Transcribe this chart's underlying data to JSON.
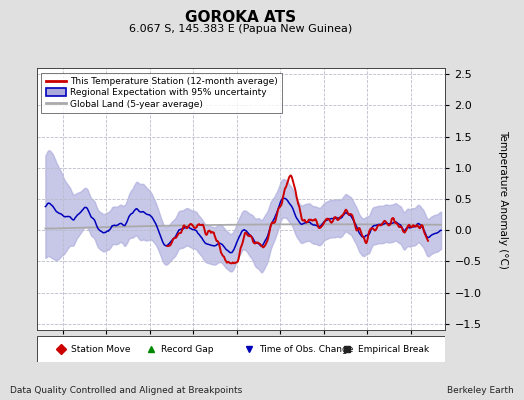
{
  "title": "GOROKA ATS",
  "subtitle": "6.067 S, 145.383 E (Papua New Guinea)",
  "ylabel": "Temperature Anomaly (°C)",
  "xlabel_note": "Data Quality Controlled and Aligned at Breakpoints",
  "credit": "Berkeley Earth",
  "xlim": [
    1937,
    1984
  ],
  "ylim": [
    -1.6,
    2.6
  ],
  "yticks": [
    -1.5,
    -1.0,
    -0.5,
    0.0,
    0.5,
    1.0,
    1.5,
    2.0,
    2.5
  ],
  "xticks": [
    1940,
    1945,
    1950,
    1955,
    1960,
    1965,
    1970,
    1975,
    1980
  ],
  "bg_color": "#e0e0e0",
  "plot_bg_color": "#ffffff",
  "grid_color": "#bbbbcc",
  "red_line_color": "#cc0000",
  "blue_line_color": "#0000bb",
  "blue_fill_color": "#aaaadd",
  "gray_line_color": "#aaaaaa",
  "legend_labels": [
    "This Temperature Station (12-month average)",
    "Regional Expectation with 95% uncertainty",
    "Global Land (5-year average)"
  ],
  "bottom_legend": [
    {
      "marker": "D",
      "color": "#cc0000",
      "label": "Station Move"
    },
    {
      "marker": "^",
      "color": "#008800",
      "label": "Record Gap"
    },
    {
      "marker": "v",
      "color": "#0000bb",
      "label": "Time of Obs. Change"
    },
    {
      "marker": "s",
      "color": "#222222",
      "label": "Empirical Break"
    }
  ],
  "years_start": 1938.0,
  "years_end": 1983.5,
  "red_start_year": 1952.0,
  "red_end_year": 1982.0
}
